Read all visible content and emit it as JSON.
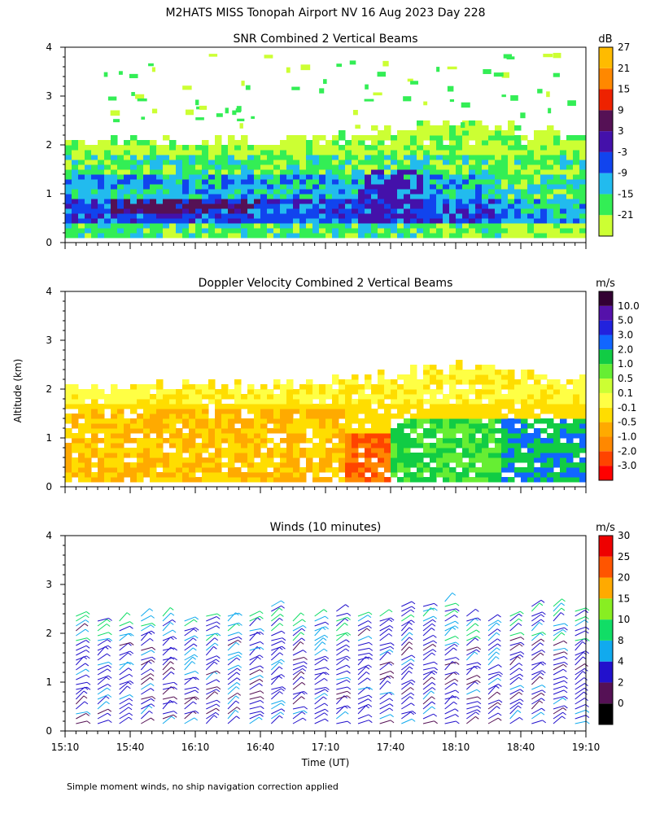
{
  "figure": {
    "title": "M2HATS MISS Tonopah Airport NV  16 Aug 2023 Day 228",
    "ylabel": "Altitude (km)",
    "xlabel": "Time (UT)",
    "footnote": "Simple moment winds, no ship navigation correction applied"
  },
  "colors": {
    "snr_scale": [
      "#ccff33",
      "#33ee55",
      "#22bbee",
      "#1144ee",
      "#4411aa",
      "#551155",
      "#ee2200",
      "#ff8800",
      "#ffbb00"
    ],
    "doppler_scale": [
      "#ff0000",
      "#ff4400",
      "#ff8800",
      "#ffaa00",
      "#ffdd00",
      "#ffff44",
      "#ccff33",
      "#66ee33",
      "#11cc44",
      "#1166ff",
      "#2222dd",
      "#5511aa",
      "#330033"
    ],
    "wind_scale": [
      "#000000",
      "#551155",
      "#2211cc",
      "#11aaee",
      "#11dd66",
      "#88ee22",
      "#ffaa00",
      "#ff5500",
      "#ee0000"
    ]
  },
  "chart_data": [
    {
      "id": "snr",
      "type": "heatmap",
      "title": "SNR Combined 2 Vertical Beams",
      "unit": "dB",
      "xlim_minutes_utc": [
        910,
        1150
      ],
      "ylim_km": [
        0,
        4
      ],
      "yticks": [
        "0",
        "1",
        "2",
        "3",
        "4"
      ],
      "colorbar_labels": [
        "-21",
        "-15",
        "-9",
        "-3",
        "3",
        "9",
        "15",
        "21",
        "27"
      ],
      "data_top_km": {
        "time_minutes": [
          910,
          940,
          970,
          1000,
          1030,
          1060,
          1090,
          1120,
          1145
        ],
        "top_km": [
          2.1,
          2.15,
          2.15,
          2.15,
          2.2,
          2.35,
          2.5,
          2.4,
          2.25
        ]
      },
      "layers_km_db": [
        {
          "from": 0.1,
          "to": 0.5,
          "db": -15
        },
        {
          "from": 0.5,
          "to": 1.0,
          "db": -3
        },
        {
          "from": 1.0,
          "to": 1.5,
          "db": -9
        },
        {
          "from": 1.5,
          "to": 1.9,
          "db": -15
        },
        {
          "from": 1.9,
          "to": 2.4,
          "db": -21
        }
      ]
    },
    {
      "id": "doppler",
      "type": "heatmap",
      "title": "Doppler Velocity Combined 2 Vertical Beams",
      "unit": "m/s",
      "xlim_minutes_utc": [
        910,
        1150
      ],
      "ylim_km": [
        0,
        4
      ],
      "yticks": [
        "0",
        "1",
        "2",
        "3",
        "4"
      ],
      "colorbar_labels": [
        "-3.0",
        "-2.0",
        "-1.0",
        "-0.5",
        "-0.1",
        "0.1",
        "0.5",
        "1.0",
        "2.0",
        "3.0",
        "5.0",
        "10.0"
      ],
      "regions": [
        {
          "time_from": 910,
          "time_to": 1040,
          "alt_from": 0.1,
          "alt_to": 1.7,
          "velocity": -0.5
        },
        {
          "time_from": 1040,
          "time_to": 1060,
          "alt_from": 0.1,
          "alt_to": 1.2,
          "velocity": -2.0
        },
        {
          "time_from": 1060,
          "time_to": 1110,
          "alt_from": 0.1,
          "alt_to": 1.5,
          "velocity": 1.0
        },
        {
          "time_from": 1110,
          "time_to": 1150,
          "alt_from": 0.1,
          "alt_to": 1.5,
          "velocity": 2.0
        }
      ]
    },
    {
      "id": "winds",
      "type": "scatter",
      "title": "Winds (10 minutes)",
      "unit": "m/s",
      "xlim_minutes_utc": [
        910,
        1150
      ],
      "ylim_km": [
        0,
        4
      ],
      "yticks": [
        "0",
        "1",
        "2",
        "3",
        "4"
      ],
      "xticks": [
        "15:10",
        "15:40",
        "16:10",
        "16:40",
        "17:10",
        "17:40",
        "18:10",
        "18:40",
        "19:10"
      ],
      "xtick_minutes": [
        910,
        940,
        970,
        1000,
        1030,
        1060,
        1090,
        1120,
        1150
      ],
      "colorbar_labels": [
        "0",
        "2",
        "4",
        "8",
        "10",
        "15",
        "20",
        "25",
        "30"
      ],
      "profile_times_minutes": [
        915,
        925,
        935,
        945,
        955,
        965,
        975,
        985,
        995,
        1005,
        1015,
        1025,
        1035,
        1045,
        1055,
        1065,
        1075,
        1085,
        1095,
        1105,
        1115,
        1125,
        1135,
        1145
      ],
      "profile_top_km": [
        2.4,
        2.3,
        2.3,
        2.4,
        2.4,
        2.3,
        2.4,
        2.4,
        2.4,
        2.6,
        2.3,
        2.4,
        2.5,
        2.4,
        2.4,
        2.6,
        2.6,
        2.7,
        2.4,
        2.3,
        2.4,
        2.6,
        2.6,
        2.5
      ],
      "typical_speed_ms": 6
    }
  ]
}
